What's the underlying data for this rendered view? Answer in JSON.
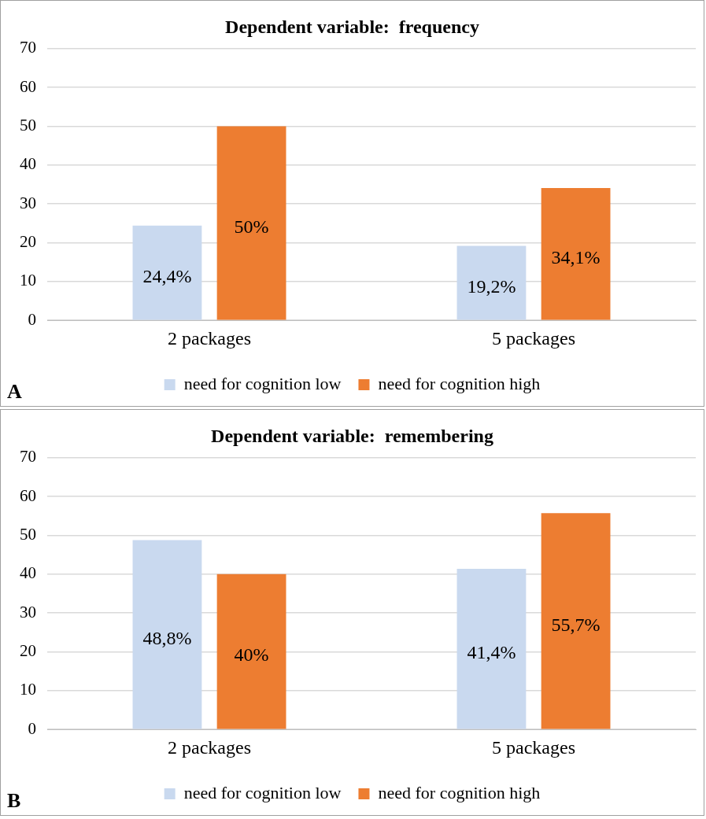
{
  "chart_data": [
    {
      "type": "bar",
      "title": "Dependent variable:  frequency",
      "categories": [
        "2 packages",
        "5 packages"
      ],
      "series": [
        {
          "name": "need for cognition low",
          "color": "#c9d9ef",
          "values": [
            24.4,
            19.2
          ],
          "value_labels": [
            "24,4%",
            "19,2%"
          ]
        },
        {
          "name": "need for cognition high",
          "color": "#ed7d31",
          "values": [
            50,
            34.1
          ],
          "value_labels": [
            "50%",
            "34,1%"
          ]
        }
      ],
      "ylim": [
        0,
        70
      ],
      "yticks": [
        0,
        10,
        20,
        30,
        40,
        50,
        60,
        70
      ],
      "grid": "y",
      "legend": "bottom",
      "annotations": [
        "A"
      ]
    },
    {
      "type": "bar",
      "title": "Dependent variable:  remembering",
      "categories": [
        "2 packages",
        "5 packages"
      ],
      "series": [
        {
          "name": "need for cognition low",
          "color": "#c9d9ef",
          "values": [
            48.8,
            41.4
          ],
          "value_labels": [
            "48,8%",
            "41,4%"
          ]
        },
        {
          "name": "need for cognition high",
          "color": "#ed7d31",
          "values": [
            40,
            55.7
          ],
          "value_labels": [
            "40%",
            "55,7%"
          ]
        }
      ],
      "ylim": [
        0,
        70
      ],
      "yticks": [
        0,
        10,
        20,
        30,
        40,
        50,
        60,
        70
      ],
      "grid": "y",
      "legend": "bottom",
      "annotations": [
        "B"
      ]
    }
  ]
}
